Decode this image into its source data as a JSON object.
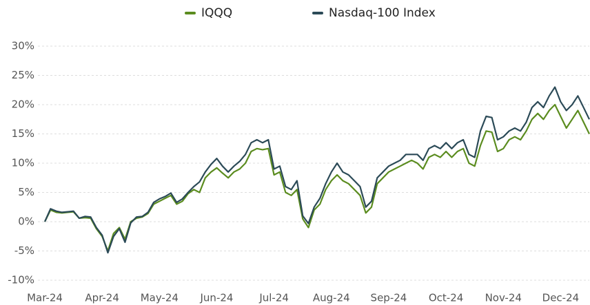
{
  "chart_data": {
    "type": "line",
    "categories": [
      "Mar-24",
      null,
      null,
      null,
      null,
      null,
      null,
      null,
      null,
      null,
      "Apr-24",
      null,
      null,
      null,
      null,
      null,
      null,
      null,
      null,
      null,
      "May-24",
      null,
      null,
      null,
      null,
      null,
      null,
      null,
      null,
      null,
      "Jun-24",
      null,
      null,
      null,
      null,
      null,
      null,
      null,
      null,
      null,
      "Jul-24",
      null,
      null,
      null,
      null,
      null,
      null,
      null,
      null,
      null,
      "Aug-24",
      null,
      null,
      null,
      null,
      null,
      null,
      null,
      null,
      null,
      "Sep-24",
      null,
      null,
      null,
      null,
      null,
      null,
      null,
      null,
      null,
      "Oct-24",
      null,
      null,
      null,
      null,
      null,
      null,
      null,
      null,
      null,
      "Nov-24",
      null,
      null,
      null,
      null,
      null,
      null,
      null,
      null,
      null,
      "Dec-24",
      null,
      null,
      null,
      null,
      null
    ],
    "series": [
      {
        "name": "IQQQ",
        "color": "#5b8c1f",
        "values": [
          0,
          2.0,
          1.6,
          1.5,
          1.6,
          1.7,
          0.6,
          0.7,
          0.6,
          -1.2,
          -2.5,
          -5.0,
          -2.0,
          -1.0,
          -3.0,
          0.0,
          0.6,
          0.8,
          1.4,
          3.0,
          3.5,
          4.0,
          4.5,
          3.0,
          3.5,
          4.8,
          5.5,
          5.0,
          7.5,
          8.5,
          9.2,
          8.3,
          7.5,
          8.5,
          9.0,
          10.0,
          12.0,
          12.5,
          12.3,
          12.5,
          8.0,
          8.5,
          5.0,
          4.5,
          5.5,
          0.5,
          -1.0,
          2.0,
          3.0,
          5.5,
          7.0,
          8.0,
          7.0,
          6.5,
          5.5,
          4.5,
          1.5,
          2.5,
          6.5,
          7.5,
          8.5,
          9.0,
          9.5,
          10.0,
          10.5,
          10.0,
          9.0,
          11.0,
          11.5,
          11.0,
          12.0,
          11.0,
          12.0,
          12.5,
          10.0,
          9.5,
          13.0,
          15.5,
          15.3,
          12.0,
          12.5,
          14.0,
          14.5,
          14.0,
          15.5,
          17.5,
          18.5,
          17.5,
          19.0,
          20.0,
          18.0,
          16.0,
          17.5,
          19.0,
          17.0,
          15.0
        ]
      },
      {
        "name": "Nasdaq-100 Index",
        "color": "#2b4a57",
        "values": [
          0,
          2.2,
          1.8,
          1.6,
          1.7,
          1.8,
          0.6,
          0.9,
          0.8,
          -1.0,
          -2.3,
          -5.3,
          -2.5,
          -1.2,
          -3.5,
          -0.2,
          0.8,
          0.9,
          1.6,
          3.3,
          3.9,
          4.3,
          4.9,
          3.3,
          3.9,
          5.0,
          6.0,
          6.8,
          8.5,
          9.8,
          10.8,
          9.5,
          8.5,
          9.5,
          10.3,
          11.5,
          13.5,
          14.0,
          13.5,
          14.0,
          9.0,
          9.5,
          6.0,
          5.5,
          7.0,
          1.0,
          -0.3,
          2.5,
          4.0,
          6.5,
          8.5,
          10.0,
          8.5,
          8.0,
          7.0,
          6.0,
          2.5,
          3.5,
          7.5,
          8.5,
          9.5,
          10.0,
          10.5,
          11.5,
          11.5,
          11.5,
          10.5,
          12.5,
          13.0,
          12.5,
          13.5,
          12.5,
          13.5,
          14.0,
          11.5,
          11.0,
          15.5,
          18.0,
          17.8,
          14.0,
          14.5,
          15.5,
          16.0,
          15.5,
          17.0,
          19.5,
          20.5,
          19.5,
          21.5,
          23.0,
          20.5,
          19.0,
          20.0,
          21.5,
          19.5,
          17.5
        ]
      }
    ],
    "ylim": [
      -10,
      30
    ],
    "yticks": [
      {
        "value": -10,
        "label": "-10%"
      },
      {
        "value": -5,
        "label": "-5%"
      },
      {
        "value": 0,
        "label": "0%"
      },
      {
        "value": 5,
        "label": "5%"
      },
      {
        "value": 10,
        "label": "10%"
      },
      {
        "value": 15,
        "label": "15%"
      },
      {
        "value": 20,
        "label": "20%"
      },
      {
        "value": 25,
        "label": "25%"
      },
      {
        "value": 30,
        "label": "30%"
      }
    ],
    "grid": true,
    "legend": "top"
  }
}
